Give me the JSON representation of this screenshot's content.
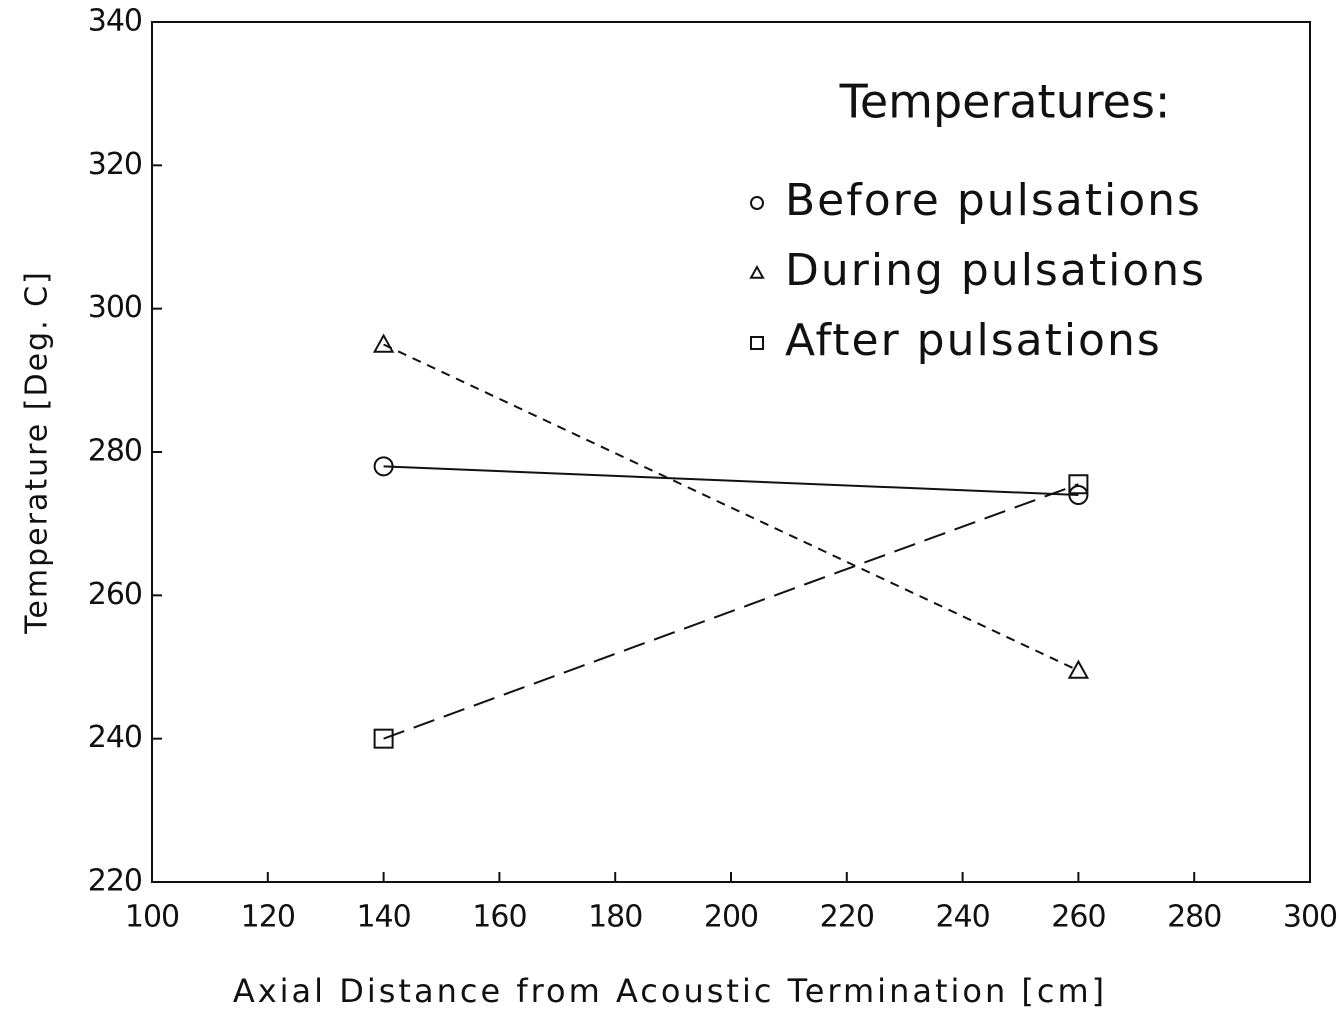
{
  "chart_data": {
    "type": "line",
    "xlabel": "Axial Distance from Acoustic Termination [cm]",
    "ylabel": "Temperature [Deg. C]",
    "legend_title": "Temperatures:",
    "x": [
      140,
      260
    ],
    "series": [
      {
        "name": "Before pulsations",
        "color": "#111111",
        "marker": "circle",
        "dash": "solid",
        "values": [
          278,
          274
        ]
      },
      {
        "name": "During pulsations",
        "color": "#111111",
        "marker": "triangle",
        "dash": "short",
        "values": [
          295,
          249.5
        ]
      },
      {
        "name": "After pulsations",
        "color": "#111111",
        "marker": "square",
        "dash": "long",
        "values": [
          240,
          275.5
        ]
      }
    ],
    "xlim": [
      100,
      300
    ],
    "xticks": [
      100,
      120,
      140,
      160,
      180,
      200,
      220,
      240,
      260,
      280,
      300
    ],
    "ylim": [
      220,
      340
    ],
    "yticks": [
      220,
      240,
      260,
      280,
      300,
      320,
      340
    ],
    "grid": false,
    "legend": "upper right"
  }
}
